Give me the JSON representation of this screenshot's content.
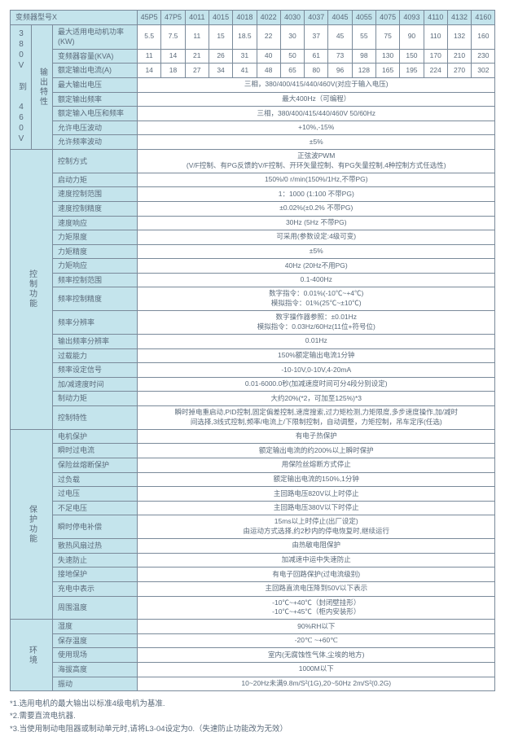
{
  "header": {
    "model_row_label": "变频器型号X",
    "models": [
      "45P5",
      "47P5",
      "4011",
      "4015",
      "4018",
      "4022",
      "4030",
      "4037",
      "4045",
      "4055",
      "4075",
      "4093",
      "4110",
      "4132",
      "4160"
    ]
  },
  "output": {
    "section_label": "380V 到 460V",
    "sub_label": "输出特性",
    "rows": [
      {
        "label": "最大适用电动机功率(KW)",
        "vals": [
          "5.5",
          "7.5",
          "11",
          "15",
          "18.5",
          "22",
          "30",
          "37",
          "45",
          "55",
          "75",
          "90",
          "110",
          "132",
          "160"
        ]
      },
      {
        "label": "变频器容量(KVA)",
        "vals": [
          "11",
          "14",
          "21",
          "26",
          "31",
          "40",
          "50",
          "61",
          "73",
          "98",
          "130",
          "150",
          "170",
          "210",
          "230"
        ]
      },
      {
        "label": "额定输出电流(A)",
        "vals": [
          "14",
          "18",
          "27",
          "34",
          "41",
          "48",
          "65",
          "80",
          "96",
          "128",
          "165",
          "195",
          "224",
          "270",
          "302"
        ]
      },
      {
        "label": "最大输出电压",
        "span": "三相，380/400/415/440/460V(对应于输入电压)"
      },
      {
        "label": "额定输出频率",
        "span": "最大400Hz（可编程）"
      },
      {
        "label": "额定输入电压和频率",
        "span": "三相，380/400/415/440/460V 50/60Hz"
      },
      {
        "label": "允许电压波动",
        "span": "+10%,-15%"
      },
      {
        "label": "允许频率波动",
        "span": "±5%"
      }
    ]
  },
  "control": {
    "section_label": "控制功能",
    "rows": [
      {
        "label": "控制方式",
        "span": "正弦波PWM\n(V/F控制、有PG反馈的V/F控制、开环矢量控制、有PG矢量控制,4种控制方式任选性)"
      },
      {
        "label": "启动力矩",
        "span": "150%/0 r/min(150%/1Hz,不带PG)"
      },
      {
        "label": "速度控制范围",
        "span": "1：1000 (1:100  不带PG)"
      },
      {
        "label": "速度控制精度",
        "span": "±0.02%(±0.2%  不带PG)"
      },
      {
        "label": "速度响应",
        "span": "30Hz (5Hz  不带PG)"
      },
      {
        "label": "力矩限度",
        "span": "可采用(参数设定:4级可变)"
      },
      {
        "label": "力矩精度",
        "span": "±5%"
      },
      {
        "label": "力矩响应",
        "span": "40Hz (20Hz不用PG)"
      },
      {
        "label": "频率控制范围",
        "span": "0.1-400Hz"
      },
      {
        "label": "频率控制精度",
        "span": "数字指令：0.01%(-10℃~+4℃)\n模拟指令：01%(25℃~±10℃)"
      },
      {
        "label": "频率分辨率",
        "span": "数字操作器参照：±0.01Hz\n模拟指令：0.03Hz/60Hz(11位+符号位)"
      },
      {
        "label": "输出频率分辨率",
        "span": "0.01Hz"
      },
      {
        "label": "过载能力",
        "span": "150%额定输出电流1分钟"
      },
      {
        "label": "频率设定信号",
        "span": "-10-10V,0-10V,4-20mA"
      },
      {
        "label": "加/减速度时间",
        "span": "0.01-6000.0秒(加减速度时间可分4段分别设定)"
      },
      {
        "label": "制动力矩",
        "span": "大约20%(*2，可加至125%)*3"
      },
      {
        "label": "控制特性",
        "span": "瞬时掉电重启动,PID控制,固定偏差控制,速度搜索,过力矩检测,力矩限度,多步速度操作,加/减时\n间选择,3线式控制,频率/电流上/下限制控制，自动调整，力矩控制，吊车定序(任选)"
      }
    ]
  },
  "protect": {
    "section_label": "保护功能",
    "rows": [
      {
        "label": "电机保护",
        "span": "有电子热保护"
      },
      {
        "label": "瞬时过电流",
        "span": "额定输出电流的约200%以上瞬时保护"
      },
      {
        "label": "保险丝熔断保护",
        "span": "用保险丝熔断方式停止"
      },
      {
        "label": "过负载",
        "span": "额定输出电流的150%,1分钟"
      },
      {
        "label": "过电压",
        "span": "主回路电压820V以上时停止"
      },
      {
        "label": "不足电压",
        "span": "主回路电压380V以下时停止"
      },
      {
        "label": "瞬时停电补偿",
        "span": "15ms以上时停止(出厂设定)\n由运动方式选择,约2秒内的停电恢复时,继续运行"
      },
      {
        "label": "散热风扇过热",
        "span": "由热敏电阻保护"
      },
      {
        "label": "失速防止",
        "span": "加减速中运中失速防止"
      },
      {
        "label": "接地保护",
        "span": "有电子回路保护(过电流级别)"
      },
      {
        "label": "充电中表示",
        "span": "主回路直流电压降到50V以下表示"
      },
      {
        "label": "周围温度",
        "span": "-10℃~+40℃（封闭壁挂形）\n-10℃~+45℃（柜内安装形）"
      }
    ]
  },
  "env": {
    "section_label": "环境",
    "rows": [
      {
        "label": "湿度",
        "span": "90%RH以下"
      },
      {
        "label": "保存温度",
        "span": "-20℃ ~+60℃"
      },
      {
        "label": "使用现场",
        "span": "室内(无腐蚀性气体,尘埃的地方)"
      },
      {
        "label": "海拔高度",
        "span": "1000M以下"
      },
      {
        "label": "振动",
        "span": "10~20Hz未满9.8m/S²(1G),20~50Hz 2m/S²(0.2G)"
      }
    ]
  },
  "notes": [
    "*1.选用电机的最大输出以标准4级电机为基准.",
    "*2.需要直流电抗器.",
    "*3.当使用制动电阻器或制动单元时,请将L3-04设定为0.（失速防止功能改为无效）"
  ],
  "colors": {
    "header_bg": "#c4e4ec",
    "border": "#7a8a9a",
    "text": "#5a6a7a",
    "bg": "#ffffff"
  }
}
